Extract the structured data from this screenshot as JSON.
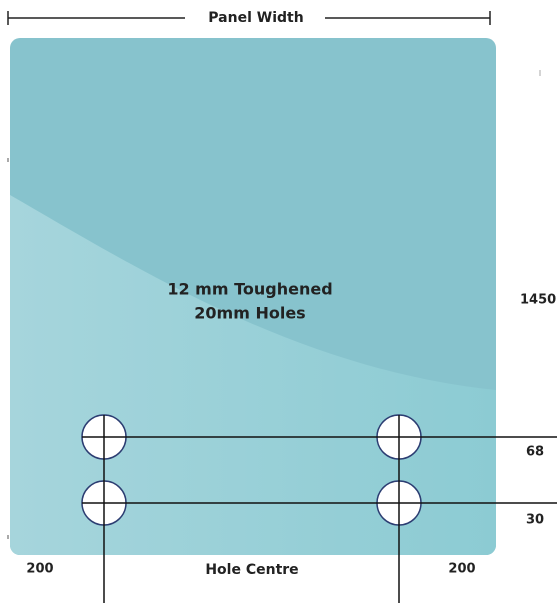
{
  "top_dimension": {
    "label": "Panel Width"
  },
  "panel": {
    "lines": [
      "12 mm Toughened",
      "20mm Holes"
    ]
  },
  "right_dimensions": {
    "height": "1450",
    "upper_hole_offset": "68",
    "lower_hole_offset": "30"
  },
  "bottom_dimensions": {
    "left_edge": "200",
    "center_label": "Hole Centre",
    "right_edge": "200"
  }
}
